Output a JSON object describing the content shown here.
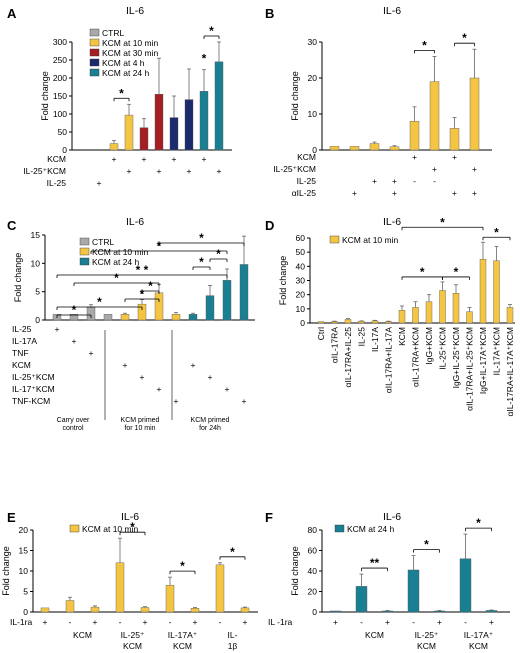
{
  "colors": {
    "gray": "#a9a9a9",
    "yellow": "#f4c542",
    "red": "#a41f24",
    "navy": "#1c2a6e",
    "teal": "#1a7f92"
  },
  "chart_data": [
    {
      "panel": "A",
      "type": "bar",
      "title": "IL-6",
      "ylabel": "Fold change",
      "ylim": [
        0,
        300
      ],
      "yticks": [
        0,
        50,
        100,
        150,
        200,
        250,
        300
      ],
      "legend": [
        {
          "name": "CTRL",
          "color": "gray"
        },
        {
          "name": "KCM at 10 min",
          "color": "yellow"
        },
        {
          "name": "KCM at 30 min",
          "color": "red"
        },
        {
          "name": "KCM at 4 h",
          "color": "navy"
        },
        {
          "name": "KCM at 24 h",
          "color": "teal"
        }
      ],
      "bars": [
        {
          "value": 0,
          "err": 0,
          "color": "gray"
        },
        {
          "value": 0,
          "err": 0,
          "color": "gray"
        },
        {
          "value": 18,
          "err": 8,
          "color": "yellow"
        },
        {
          "value": 97,
          "err": 30,
          "color": "yellow"
        },
        {
          "value": 62,
          "err": 25,
          "color": "red"
        },
        {
          "value": 155,
          "err": 100,
          "color": "red"
        },
        {
          "value": 90,
          "err": 60,
          "color": "navy"
        },
        {
          "value": 140,
          "err": 85,
          "color": "navy"
        },
        {
          "value": 163,
          "err": 60,
          "color": "teal"
        },
        {
          "value": 245,
          "err": 55,
          "color": "teal"
        }
      ],
      "rows": [
        {
          "label": "KCM",
          "signs": [
            "",
            "",
            "+",
            "",
            "+",
            "",
            "+",
            "",
            "+",
            ""
          ]
        },
        {
          "label": "IL-25⁺KCM",
          "signs": [
            "",
            "",
            "",
            "+",
            "",
            "+",
            "",
            "+",
            "",
            "+"
          ]
        },
        {
          "label": "IL-25",
          "signs": [
            "",
            "+",
            "",
            "",
            "",
            "",
            "",
            "",
            "",
            ""
          ]
        }
      ],
      "sig": [
        {
          "from": 2,
          "to": 3,
          "text": "*"
        },
        {
          "from": 8,
          "to": 8,
          "text": "*"
        },
        {
          "from": 8,
          "to": 9,
          "text": "*"
        }
      ]
    },
    {
      "panel": "B",
      "type": "bar",
      "title": "IL-6",
      "ylabel": "Fold change",
      "ylim": [
        0,
        30
      ],
      "yticks": [
        0,
        10,
        20,
        30
      ],
      "legend": [],
      "bars": [
        {
          "value": 1,
          "err": 0,
          "color": "yellow"
        },
        {
          "value": 1,
          "err": 0,
          "color": "yellow"
        },
        {
          "value": 1.8,
          "err": 0.4,
          "color": "yellow"
        },
        {
          "value": 0.9,
          "err": 0.3,
          "color": "yellow"
        },
        {
          "value": 8,
          "err": 4,
          "color": "yellow"
        },
        {
          "value": 19,
          "err": 7,
          "color": "yellow"
        },
        {
          "value": 6,
          "err": 3,
          "color": "yellow"
        },
        {
          "value": 20,
          "err": 8,
          "color": "yellow"
        }
      ],
      "rows": [
        {
          "label": "KCM",
          "signs": [
            "",
            "",
            "",
            "",
            "+",
            "",
            "+",
            ""
          ]
        },
        {
          "label": "IL-25⁺KCM",
          "signs": [
            "",
            "",
            "",
            "",
            "",
            "+",
            "",
            "+"
          ]
        },
        {
          "label": "IL-25",
          "signs": [
            "",
            "",
            "+",
            "+",
            "-",
            "-",
            "",
            ""
          ]
        },
        {
          "label": "αIL-25",
          "signs": [
            "",
            "+",
            "",
            "+",
            "",
            "",
            "+",
            "+"
          ]
        }
      ],
      "sig": [
        {
          "from": 4,
          "to": 5,
          "text": "*"
        },
        {
          "from": 6,
          "to": 7,
          "text": "*"
        }
      ]
    },
    {
      "panel": "C",
      "type": "bar",
      "title": "IL-6",
      "ylabel": "Fold change",
      "ylim": [
        0,
        15
      ],
      "yticks": [
        0,
        5,
        10,
        15
      ],
      "legend": [
        {
          "name": "CTRL",
          "color": "gray"
        },
        {
          "name": "KCM at 10 min",
          "color": "yellow"
        },
        {
          "name": "KCM at 24 h",
          "color": "teal"
        }
      ],
      "bars": [
        {
          "value": 1,
          "err": 0,
          "color": "gray"
        },
        {
          "value": 1,
          "err": 0,
          "color": "gray"
        },
        {
          "value": 2.3,
          "err": 0.4,
          "color": "gray"
        },
        {
          "value": 1,
          "err": 0,
          "color": "gray"
        },
        {
          "value": 1,
          "err": 0.2,
          "color": "yellow"
        },
        {
          "value": 2.8,
          "err": 0.8,
          "color": "yellow"
        },
        {
          "value": 4.8,
          "err": 1.5,
          "color": "yellow"
        },
        {
          "value": 1,
          "err": 0.3,
          "color": "yellow"
        },
        {
          "value": 1,
          "err": 0.2,
          "color": "teal"
        },
        {
          "value": 4.3,
          "err": 1.8,
          "color": "teal"
        },
        {
          "value": 7,
          "err": 2,
          "color": "teal"
        },
        {
          "value": 9.8,
          "err": 5,
          "color": "teal"
        }
      ],
      "rows": [
        {
          "label": "IL-25",
          "signs": [
            "+",
            "",
            "",
            "",
            "",
            "",
            "",
            "",
            "",
            "",
            "",
            ""
          ]
        },
        {
          "label": "IL-17A",
          "signs": [
            "",
            "+",
            "",
            "",
            "",
            "",
            "",
            "",
            "",
            "",
            "",
            ""
          ]
        },
        {
          "label": "TNF",
          "signs": [
            "",
            "",
            "+",
            "",
            "",
            "",
            "",
            "",
            "",
            "",
            "",
            ""
          ]
        },
        {
          "label": "KCM",
          "signs": [
            "",
            "",
            "",
            "",
            "+",
            "",
            "",
            "",
            "+",
            "",
            "",
            ""
          ]
        },
        {
          "label": "IL-25⁺KCM",
          "signs": [
            "",
            "",
            "",
            "",
            "",
            "+",
            "",
            "",
            "",
            "+",
            "",
            ""
          ]
        },
        {
          "label": "IL-17⁺KCM",
          "signs": [
            "",
            "",
            "",
            "",
            "",
            "",
            "+",
            "",
            "",
            "",
            "+",
            ""
          ]
        },
        {
          "label": "TNF-KCM",
          "signs": [
            "",
            "",
            "",
            "",
            "",
            "",
            "",
            "+",
            "",
            "",
            "",
            "+"
          ]
        }
      ],
      "groups": [
        "Carry over control",
        "KCM primed for 10 min",
        "KCM primed for 24h"
      ],
      "sig": [
        {
          "from": 0,
          "to": 2,
          "text": "*"
        },
        {
          "from": 0,
          "to": 5,
          "text": "*"
        },
        {
          "from": 4,
          "to": 6,
          "text": "*"
        },
        {
          "from": 5,
          "to": 6,
          "text": "*"
        },
        {
          "from": 1,
          "to": 6,
          "text": "*"
        },
        {
          "from": 0,
          "to": 10,
          "text": "* *"
        },
        {
          "from": 8,
          "to": 9,
          "text": "*"
        },
        {
          "from": 9,
          "to": 10,
          "text": "*"
        },
        {
          "from": 2,
          "to": 10,
          "text": "*"
        },
        {
          "from": 6,
          "to": 11,
          "text": "*"
        }
      ]
    },
    {
      "panel": "D",
      "type": "bar",
      "title": "IL-6",
      "ylabel": "Fold change",
      "ylim": [
        0,
        60
      ],
      "yticks": [
        0,
        10,
        20,
        30,
        40,
        50,
        60
      ],
      "legend": [
        {
          "name": "KCM at 10 min",
          "color": "yellow"
        }
      ],
      "categories": [
        "Ctrl",
        "αIL-17RA",
        "αIL-17RA+IL-25",
        "IL-25",
        "IL-17A",
        "αIL-17RA+IL-17A",
        "KCM",
        "αIL-17RA+KCM",
        "IgG+KCM",
        "IL-25⁺KCM",
        "IgG+IL-25⁺KCM",
        "αIL-17RA+IL-25⁺KCM",
        "IgG+IL-17A⁺KCM",
        "IL-17A⁺KCM",
        "αIL-17RA+IL-17A⁺KCM"
      ],
      "bars": [
        {
          "value": 1,
          "err": 0,
          "color": "yellow"
        },
        {
          "value": 1,
          "err": 0.3,
          "color": "yellow"
        },
        {
          "value": 2.5,
          "err": 0.6,
          "color": "yellow"
        },
        {
          "value": 1.2,
          "err": 0.3,
          "color": "yellow"
        },
        {
          "value": 1.5,
          "err": 0.4,
          "color": "yellow"
        },
        {
          "value": 1,
          "err": 0.3,
          "color": "yellow"
        },
        {
          "value": 9,
          "err": 3,
          "color": "yellow"
        },
        {
          "value": 11,
          "err": 4,
          "color": "yellow"
        },
        {
          "value": 15,
          "err": 5,
          "color": "yellow"
        },
        {
          "value": 23,
          "err": 6,
          "color": "yellow"
        },
        {
          "value": 21,
          "err": 6,
          "color": "yellow"
        },
        {
          "value": 8,
          "err": 3,
          "color": "yellow"
        },
        {
          "value": 45,
          "err": 12,
          "color": "yellow"
        },
        {
          "value": 44,
          "err": 10,
          "color": "yellow"
        },
        {
          "value": 11,
          "err": 2,
          "color": "yellow"
        }
      ],
      "sig": [
        {
          "from": 6,
          "to": 9,
          "text": "*"
        },
        {
          "from": 9,
          "to": 11,
          "text": "*"
        },
        {
          "from": 6,
          "to": 12,
          "text": "*"
        },
        {
          "from": 12,
          "to": 14,
          "text": "*"
        }
      ]
    },
    {
      "panel": "E",
      "type": "bar",
      "title": "IL-6",
      "ylabel": "Fold change",
      "ylim": [
        0,
        20
      ],
      "yticks": [
        0,
        5,
        10,
        15,
        20
      ],
      "legend": [
        {
          "name": "KCM at 10 min",
          "color": "yellow"
        }
      ],
      "bars": [
        {
          "value": 1,
          "err": 0,
          "color": "yellow"
        },
        {
          "value": 2.8,
          "err": 0.8,
          "color": "yellow"
        },
        {
          "value": 1.2,
          "err": 0.3,
          "color": "yellow"
        },
        {
          "value": 12,
          "err": 6,
          "color": "yellow"
        },
        {
          "value": 1.1,
          "err": 0.2,
          "color": "yellow"
        },
        {
          "value": 6.5,
          "err": 2,
          "color": "yellow"
        },
        {
          "value": 0.9,
          "err": 0.2,
          "color": "yellow"
        },
        {
          "value": 11.5,
          "err": 0.5,
          "color": "yellow"
        },
        {
          "value": 1,
          "err": 0.2,
          "color": "yellow"
        }
      ],
      "rows": [
        {
          "label": "IL-1ra",
          "signs": [
            "+",
            "-",
            "+",
            "-",
            "+",
            "-",
            "+",
            "-",
            "+"
          ]
        }
      ],
      "groups": [
        "KCM",
        "IL-25⁺ KCM",
        "IL-17A⁺ KCM",
        "IL- 1β"
      ],
      "sig": [
        {
          "from": 3,
          "to": 4,
          "text": "*"
        },
        {
          "from": 5,
          "to": 6,
          "text": "*"
        },
        {
          "from": 7,
          "to": 8,
          "text": "*"
        }
      ]
    },
    {
      "panel": "F",
      "type": "bar",
      "title": "IL-6",
      "ylabel": "Fold change",
      "ylim": [
        0,
        80
      ],
      "yticks": [
        0,
        20,
        40,
        60,
        80
      ],
      "legend": [
        {
          "name": "KCM at 24 h",
          "color": "teal"
        }
      ],
      "bars": [
        {
          "value": 1,
          "err": 0,
          "color": "teal"
        },
        {
          "value": 25,
          "err": 12,
          "color": "teal"
        },
        {
          "value": 1,
          "err": 0.5,
          "color": "teal"
        },
        {
          "value": 41,
          "err": 14,
          "color": "teal"
        },
        {
          "value": 1,
          "err": 0.5,
          "color": "teal"
        },
        {
          "value": 52,
          "err": 24,
          "color": "teal"
        },
        {
          "value": 1.5,
          "err": 0.5,
          "color": "teal"
        }
      ],
      "rows": [
        {
          "label": "IL -1ra",
          "signs": [
            "+",
            "-",
            "+",
            "-",
            "+",
            "-",
            "+"
          ]
        }
      ],
      "groups": [
        "KCM",
        "IL-25⁺ KCM",
        "IL-17A⁺ KCM"
      ],
      "sig": [
        {
          "from": 1,
          "to": 2,
          "text": "**"
        },
        {
          "from": 3,
          "to": 4,
          "text": "*"
        },
        {
          "from": 5,
          "to": 6,
          "text": "*"
        }
      ]
    }
  ]
}
